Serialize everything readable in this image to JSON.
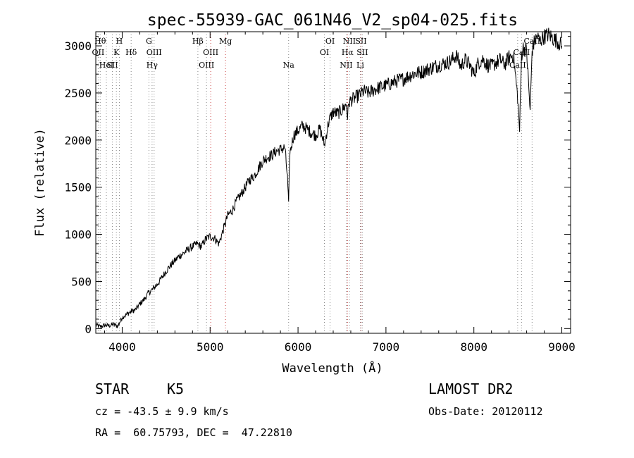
{
  "chart_data": {
    "type": "line",
    "title": "spec-55939-GAC_061N46_V2_sp04-025.fits",
    "xlabel": "Wavelength (Å)",
    "ylabel": "Flux (relative)",
    "xlim": [
      3700,
      9100
    ],
    "ylim": [
      -50,
      3150
    ],
    "xticks": [
      4000,
      5000,
      6000,
      7000,
      8000,
      9000
    ],
    "xtick_labels": [
      "4000",
      "5000",
      "6000",
      "7000",
      "8000",
      "9000"
    ],
    "yticks": [
      0,
      500,
      1000,
      1500,
      2000,
      2500,
      3000
    ],
    "ytick_labels": [
      "0",
      "500",
      "1000",
      "1500",
      "2000",
      "2500",
      "3000"
    ],
    "grid": false,
    "series": [
      {
        "name": "spectrum",
        "color": "#000000",
        "x": [
          3700,
          3750,
          3800,
          3850,
          3900,
          3950,
          4000,
          4050,
          4100,
          4150,
          4200,
          4250,
          4300,
          4350,
          4400,
          4450,
          4500,
          4550,
          4600,
          4650,
          4700,
          4750,
          4800,
          4850,
          4900,
          4950,
          5000,
          5050,
          5100,
          5150,
          5200,
          5250,
          5300,
          5350,
          5400,
          5450,
          5500,
          5550,
          5600,
          5650,
          5700,
          5750,
          5800,
          5850,
          5880,
          5893,
          5905,
          5950,
          6000,
          6050,
          6100,
          6150,
          6200,
          6250,
          6300,
          6350,
          6400,
          6450,
          6500,
          6550,
          6563,
          6580,
          6600,
          6650,
          6700,
          6750,
          6800,
          6900,
          7000,
          7100,
          7200,
          7300,
          7400,
          7500,
          7600,
          7700,
          7750,
          7800,
          7850,
          7900,
          7950,
          8000,
          8050,
          8100,
          8150,
          8200,
          8250,
          8300,
          8350,
          8400,
          8450,
          8498,
          8520,
          8542,
          8560,
          8600,
          8640,
          8662,
          8690,
          8720,
          8750,
          8800,
          8850,
          8900,
          8950,
          9000
        ],
        "values": [
          40,
          20,
          35,
          30,
          45,
          25,
          120,
          150,
          180,
          200,
          260,
          310,
          380,
          420,
          470,
          540,
          610,
          670,
          720,
          770,
          800,
          840,
          870,
          900,
          870,
          950,
          980,
          960,
          900,
          1050,
          1200,
          1250,
          1350,
          1420,
          1500,
          1580,
          1620,
          1700,
          1780,
          1820,
          1840,
          1880,
          1900,
          1920,
          1600,
          1300,
          1850,
          2050,
          2100,
          2150,
          2120,
          2080,
          2050,
          2120,
          1950,
          2200,
          2300,
          2280,
          2320,
          2380,
          2250,
          2400,
          2420,
          2450,
          2480,
          2520,
          2500,
          2550,
          2580,
          2620,
          2650,
          2700,
          2720,
          2760,
          2800,
          2820,
          2850,
          2900,
          2780,
          2850,
          2800,
          2700,
          2820,
          2860,
          2800,
          2780,
          2820,
          2850,
          2800,
          2880,
          2900,
          2450,
          2100,
          2900,
          2980,
          2950,
          2300,
          2950,
          3050,
          3100,
          3050,
          3100,
          3120,
          3080,
          3050,
          3000
        ]
      }
    ],
    "line_markers": [
      {
        "wavelength": 3727,
        "label": "OII",
        "row": 2,
        "color": "#888888"
      },
      {
        "wavelength": 3750,
        "label": "Hθ",
        "row": 0,
        "color": "#888888"
      },
      {
        "wavelength": 3820,
        "label": "HeI",
        "row": 3,
        "color": "#888888"
      },
      {
        "wavelength": 3889,
        "label": "SII",
        "row": 3,
        "color": "#888888"
      },
      {
        "wavelength": 3934,
        "label": "K",
        "row": 2,
        "color": "#888888"
      },
      {
        "wavelength": 3968,
        "label": "H",
        "row": 0,
        "color": "#888888"
      },
      {
        "wavelength": 4102,
        "label": "Hδ",
        "row": 2,
        "color": "#888888"
      },
      {
        "wavelength": 4304,
        "label": "G",
        "row": 0,
        "color": "#888888"
      },
      {
        "wavelength": 4340,
        "label": "Hγ",
        "row": 3,
        "color": "#888888"
      },
      {
        "wavelength": 4363,
        "label": "OIII",
        "row": 2,
        "color": "#888888"
      },
      {
        "wavelength": 4861,
        "label": "Hβ",
        "row": 0,
        "color": "#888888"
      },
      {
        "wavelength": 4959,
        "label": "OIII",
        "row": 3,
        "color": "#888888"
      },
      {
        "wavelength": 5007,
        "label": "OIII",
        "row": 2,
        "color": "#cc4444"
      },
      {
        "wavelength": 5175,
        "label": "Mg",
        "row": 0,
        "color": "#cc4444"
      },
      {
        "wavelength": 5893,
        "label": "Na",
        "row": 3,
        "color": "#888888"
      },
      {
        "wavelength": 6300,
        "label": "OI",
        "row": 2,
        "color": "#888888"
      },
      {
        "wavelength": 6364,
        "label": "OI",
        "row": 0,
        "color": "#888888"
      },
      {
        "wavelength": 6548,
        "label": "NII",
        "row": 3,
        "color": "#888888"
      },
      {
        "wavelength": 6563,
        "label": "Hα",
        "row": 2,
        "color": "#cc4444"
      },
      {
        "wavelength": 6584,
        "label": "NII",
        "row": 0,
        "color": "#888888"
      },
      {
        "wavelength": 6708,
        "label": "Li",
        "row": 3,
        "color": "#888888"
      },
      {
        "wavelength": 6716,
        "label": "SII",
        "row": 0,
        "color": "#cc4444"
      },
      {
        "wavelength": 6731,
        "label": "SII",
        "row": 2,
        "color": "#888888"
      },
      {
        "wavelength": 8498,
        "label": "CaII",
        "row": 3,
        "color": "#888888"
      },
      {
        "wavelength": 8542,
        "label": "CaII",
        "row": 2,
        "color": "#888888"
      },
      {
        "wavelength": 8662,
        "label": "CaII",
        "row": 0,
        "color": "#888888"
      }
    ]
  },
  "footer": {
    "object_type": "STAR",
    "subclass": "K5",
    "survey": "LAMOST DR2",
    "velocity": "cz = -43.5 ± 9.9 km/s",
    "obs_date": "Obs-Date: 20120112",
    "coords": "RA =  60.75793, DEC =  47.22810"
  }
}
